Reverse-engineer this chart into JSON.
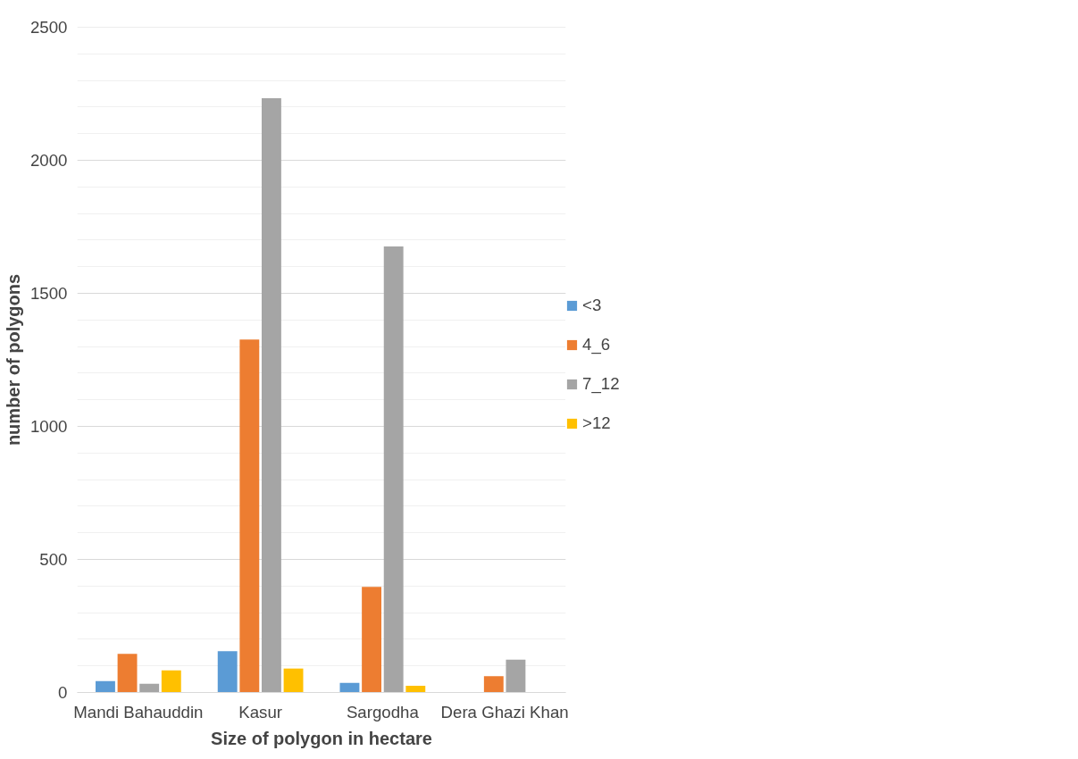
{
  "chart_data": {
    "type": "bar",
    "xlabel": "Size of polygon in hectare",
    "ylabel": "number of polygons",
    "categories": [
      "Mandi Bahauddin",
      "Kasur",
      "Sargodha",
      "Dera Ghazi Khan"
    ],
    "series": [
      {
        "name": "<3",
        "color": "#5b9bd5",
        "values": [
          43,
          155,
          36,
          0
        ]
      },
      {
        "name": "4_6",
        "color": "#ed7d31",
        "values": [
          145,
          1326,
          397,
          61
        ]
      },
      {
        "name": "7_12",
        "color": "#a5a5a5",
        "values": [
          33,
          2233,
          1676,
          123
        ]
      },
      {
        "name": ">12",
        "color": "#ffc000",
        "values": [
          83,
          90,
          25,
          0
        ]
      }
    ],
    "ylim": [
      0,
      2500
    ],
    "yticks": [
      0,
      {
        "value": 100,
        "label": null
      },
      {
        "value": 200,
        "label": null
      },
      {
        "value": 300,
        "label": null
      },
      {
        "value": 400,
        "label": null
      },
      500,
      {
        "value": 600,
        "label": null
      },
      {
        "value": 700,
        "label": null
      },
      {
        "value": 800,
        "label": null
      },
      {
        "value": 900,
        "label": null
      },
      1000,
      {
        "value": 1100,
        "label": null
      },
      {
        "value": 1200,
        "label": null
      },
      {
        "value": 1300,
        "label": null
      },
      {
        "value": 1400,
        "label": null
      },
      1500,
      {
        "value": 1600,
        "label": null
      },
      {
        "value": 1700,
        "label": null
      },
      {
        "value": 1800,
        "label": null
      },
      {
        "value": 1900,
        "label": null
      },
      2000,
      {
        "value": 2100,
        "label": null
      },
      {
        "value": 2200,
        "label": null
      },
      {
        "value": 2300,
        "label": null
      },
      {
        "value": 2400,
        "label": null
      },
      2500
    ],
    "grid": "y",
    "legend": "right"
  }
}
